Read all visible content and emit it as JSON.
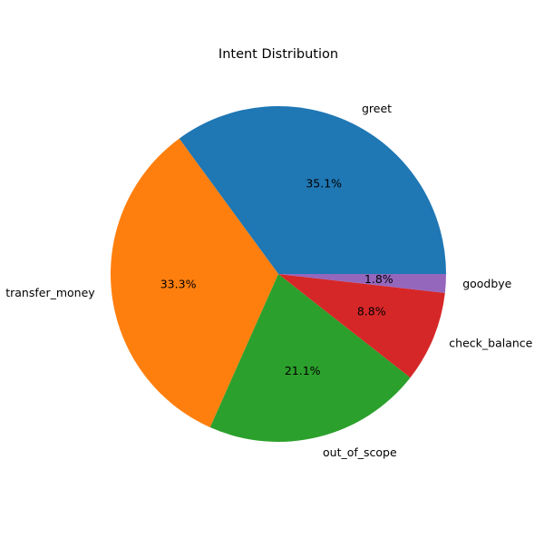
{
  "chart_data": {
    "type": "pie",
    "title": "Intent Distribution",
    "categories": [
      "greet",
      "transfer_money",
      "out_of_scope",
      "check_balance",
      "goodbye"
    ],
    "values": [
      35.1,
      33.3,
      21.1,
      8.8,
      1.8
    ],
    "percent_labels": [
      "35.1%",
      "33.3%",
      "21.1%",
      "8.8%",
      "1.8%"
    ],
    "colors": [
      "#1f77b4",
      "#ff7f0e",
      "#2ca02c",
      "#d62728",
      "#9467bd"
    ],
    "start_angle_deg": 0,
    "direction": "counterclockwise",
    "legend": "none"
  }
}
